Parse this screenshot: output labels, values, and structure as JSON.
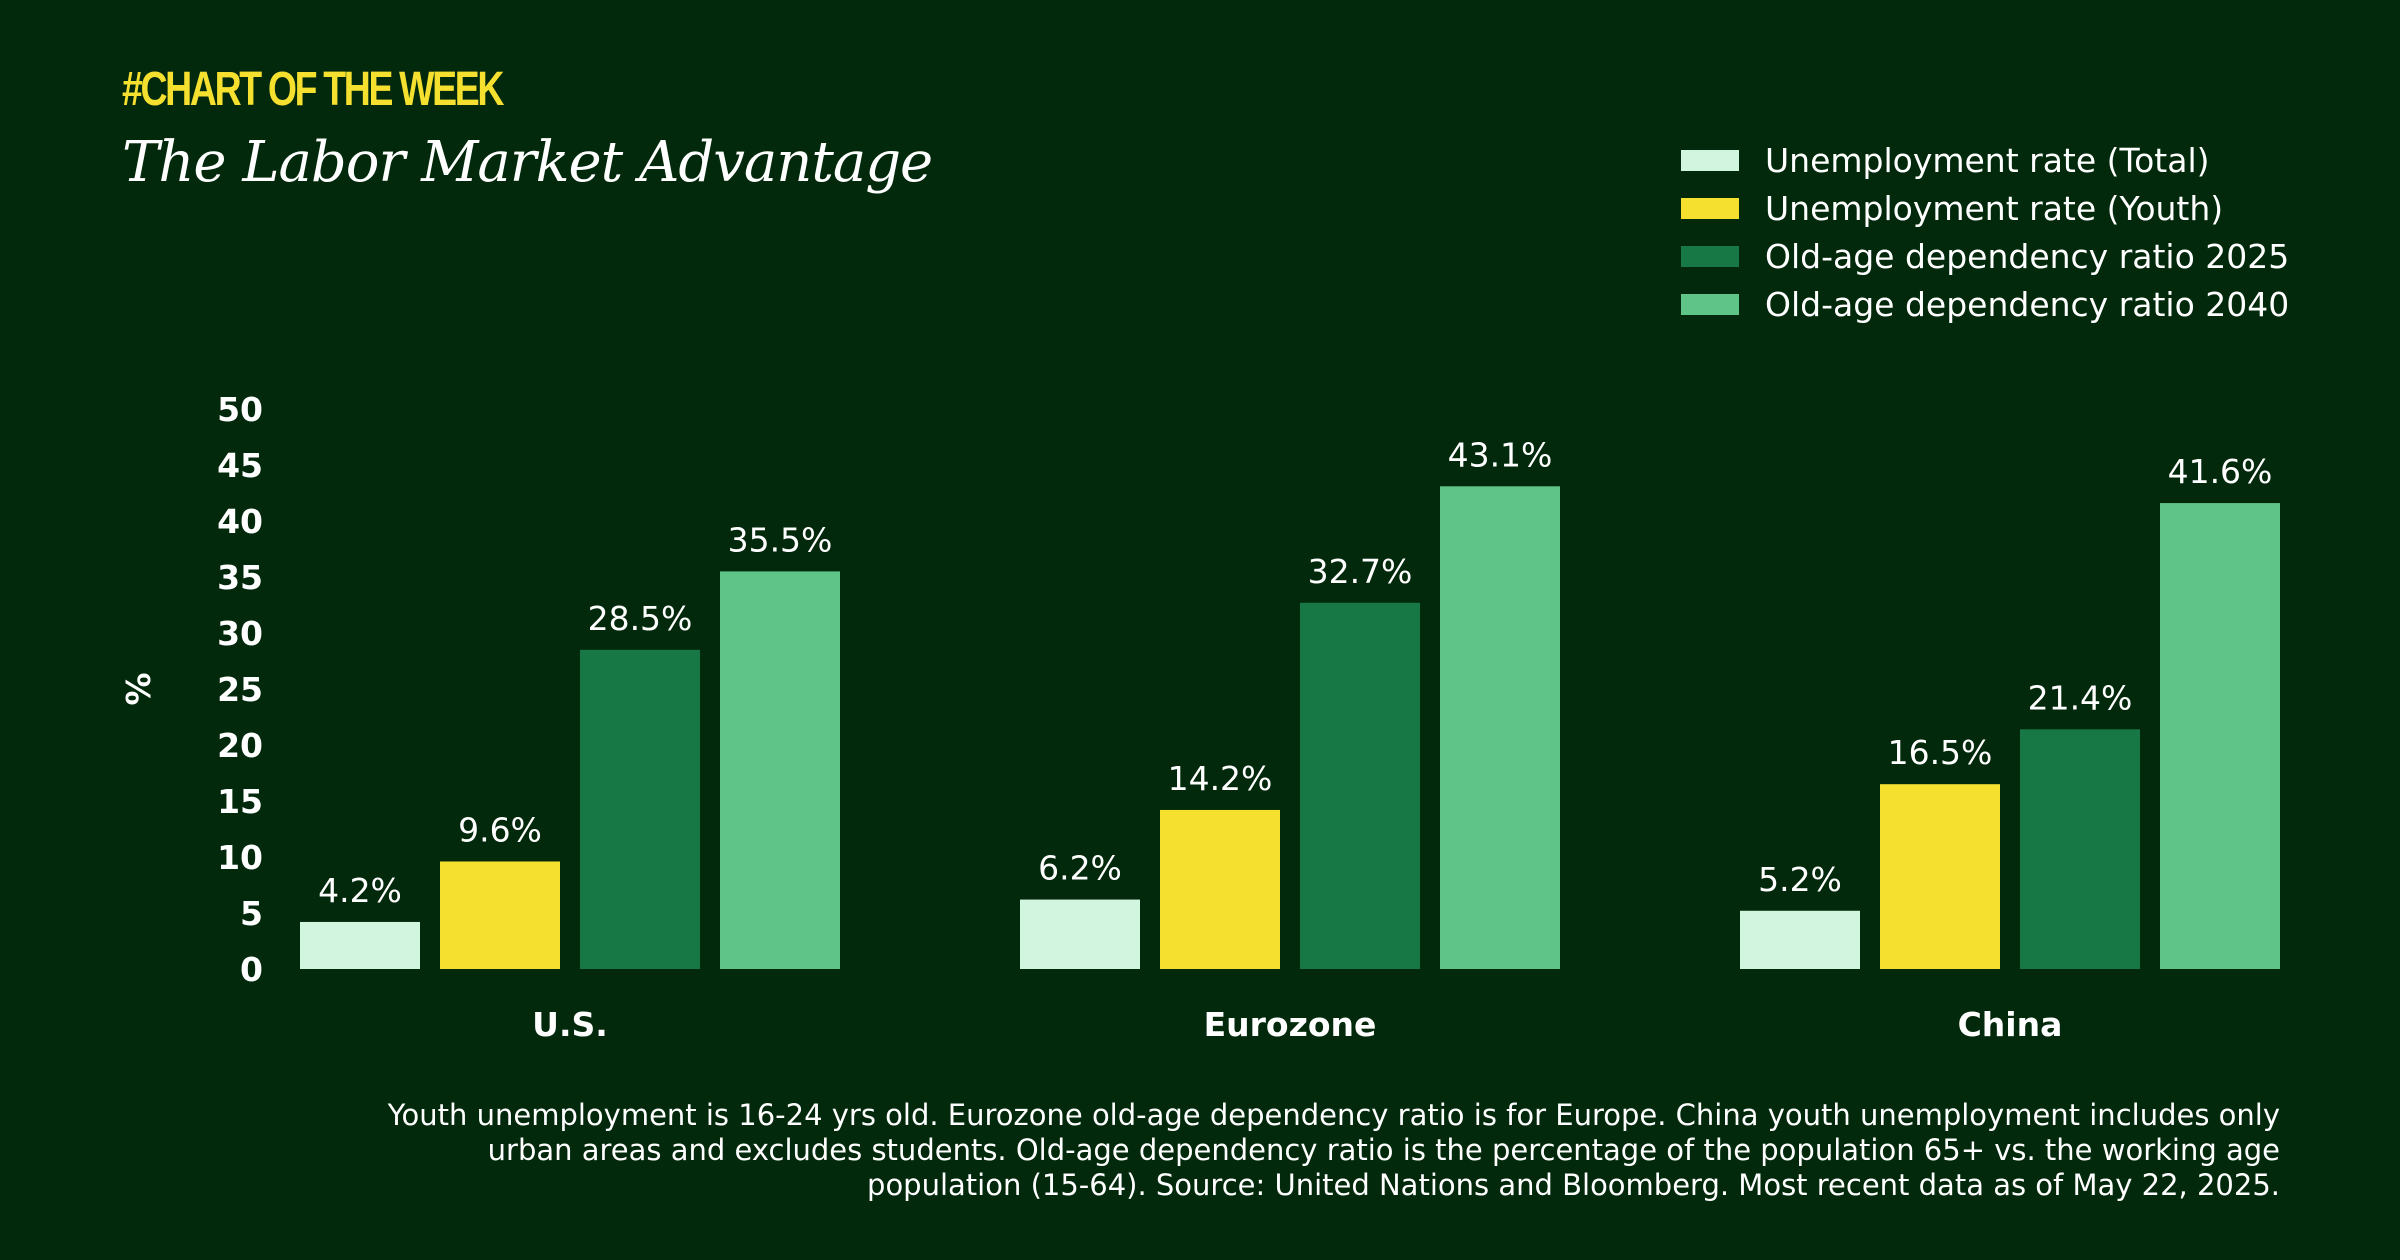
{
  "kicker": "#CHART OF THE WEEK",
  "title": "The Labor Market Advantage",
  "footnote": "Youth unemployment is 16-24 yrs old. Eurozone old-age dependency ratio is for Europe. China youth unemployment includes only urban areas and excludes students. Old-age dependency ratio is the percentage of the population 65+ vs. the working age population (15-64). Source: United Nations and Bloomberg. Most recent data as of May 22, 2025.",
  "chart_data": {
    "type": "bar",
    "title": "The Labor Market Advantage",
    "xlabel": "",
    "ylabel": "%",
    "ylim": [
      0,
      50
    ],
    "yticks": [
      0,
      5,
      10,
      15,
      20,
      25,
      30,
      35,
      40,
      45,
      50
    ],
    "grid": false,
    "legend_placement": "top-right",
    "categories": [
      "U.S.",
      "Eurozone",
      "China"
    ],
    "series": [
      {
        "name": "Unemployment rate (Total)",
        "color": "#d2f5e0",
        "values": [
          4.2,
          6.2,
          5.2
        ],
        "labels": [
          "4.2%",
          "6.2%",
          "5.2%"
        ]
      },
      {
        "name": "Unemployment rate (Youth)",
        "color": "#f5e030",
        "values": [
          9.6,
          14.2,
          16.5
        ],
        "labels": [
          "9.6%",
          "14.2%",
          "16.5%"
        ]
      },
      {
        "name": "Old-age dependency ratio 2025",
        "color": "#177845",
        "values": [
          28.5,
          32.7,
          21.4
        ],
        "labels": [
          "28.5%",
          "32.7%",
          "21.4%"
        ]
      },
      {
        "name": "Old-age dependency ratio 2040",
        "color": "#5ec488",
        "values": [
          35.5,
          43.1,
          41.6
        ],
        "labels": [
          "35.5%",
          "43.1%",
          "41.6%"
        ]
      }
    ]
  }
}
